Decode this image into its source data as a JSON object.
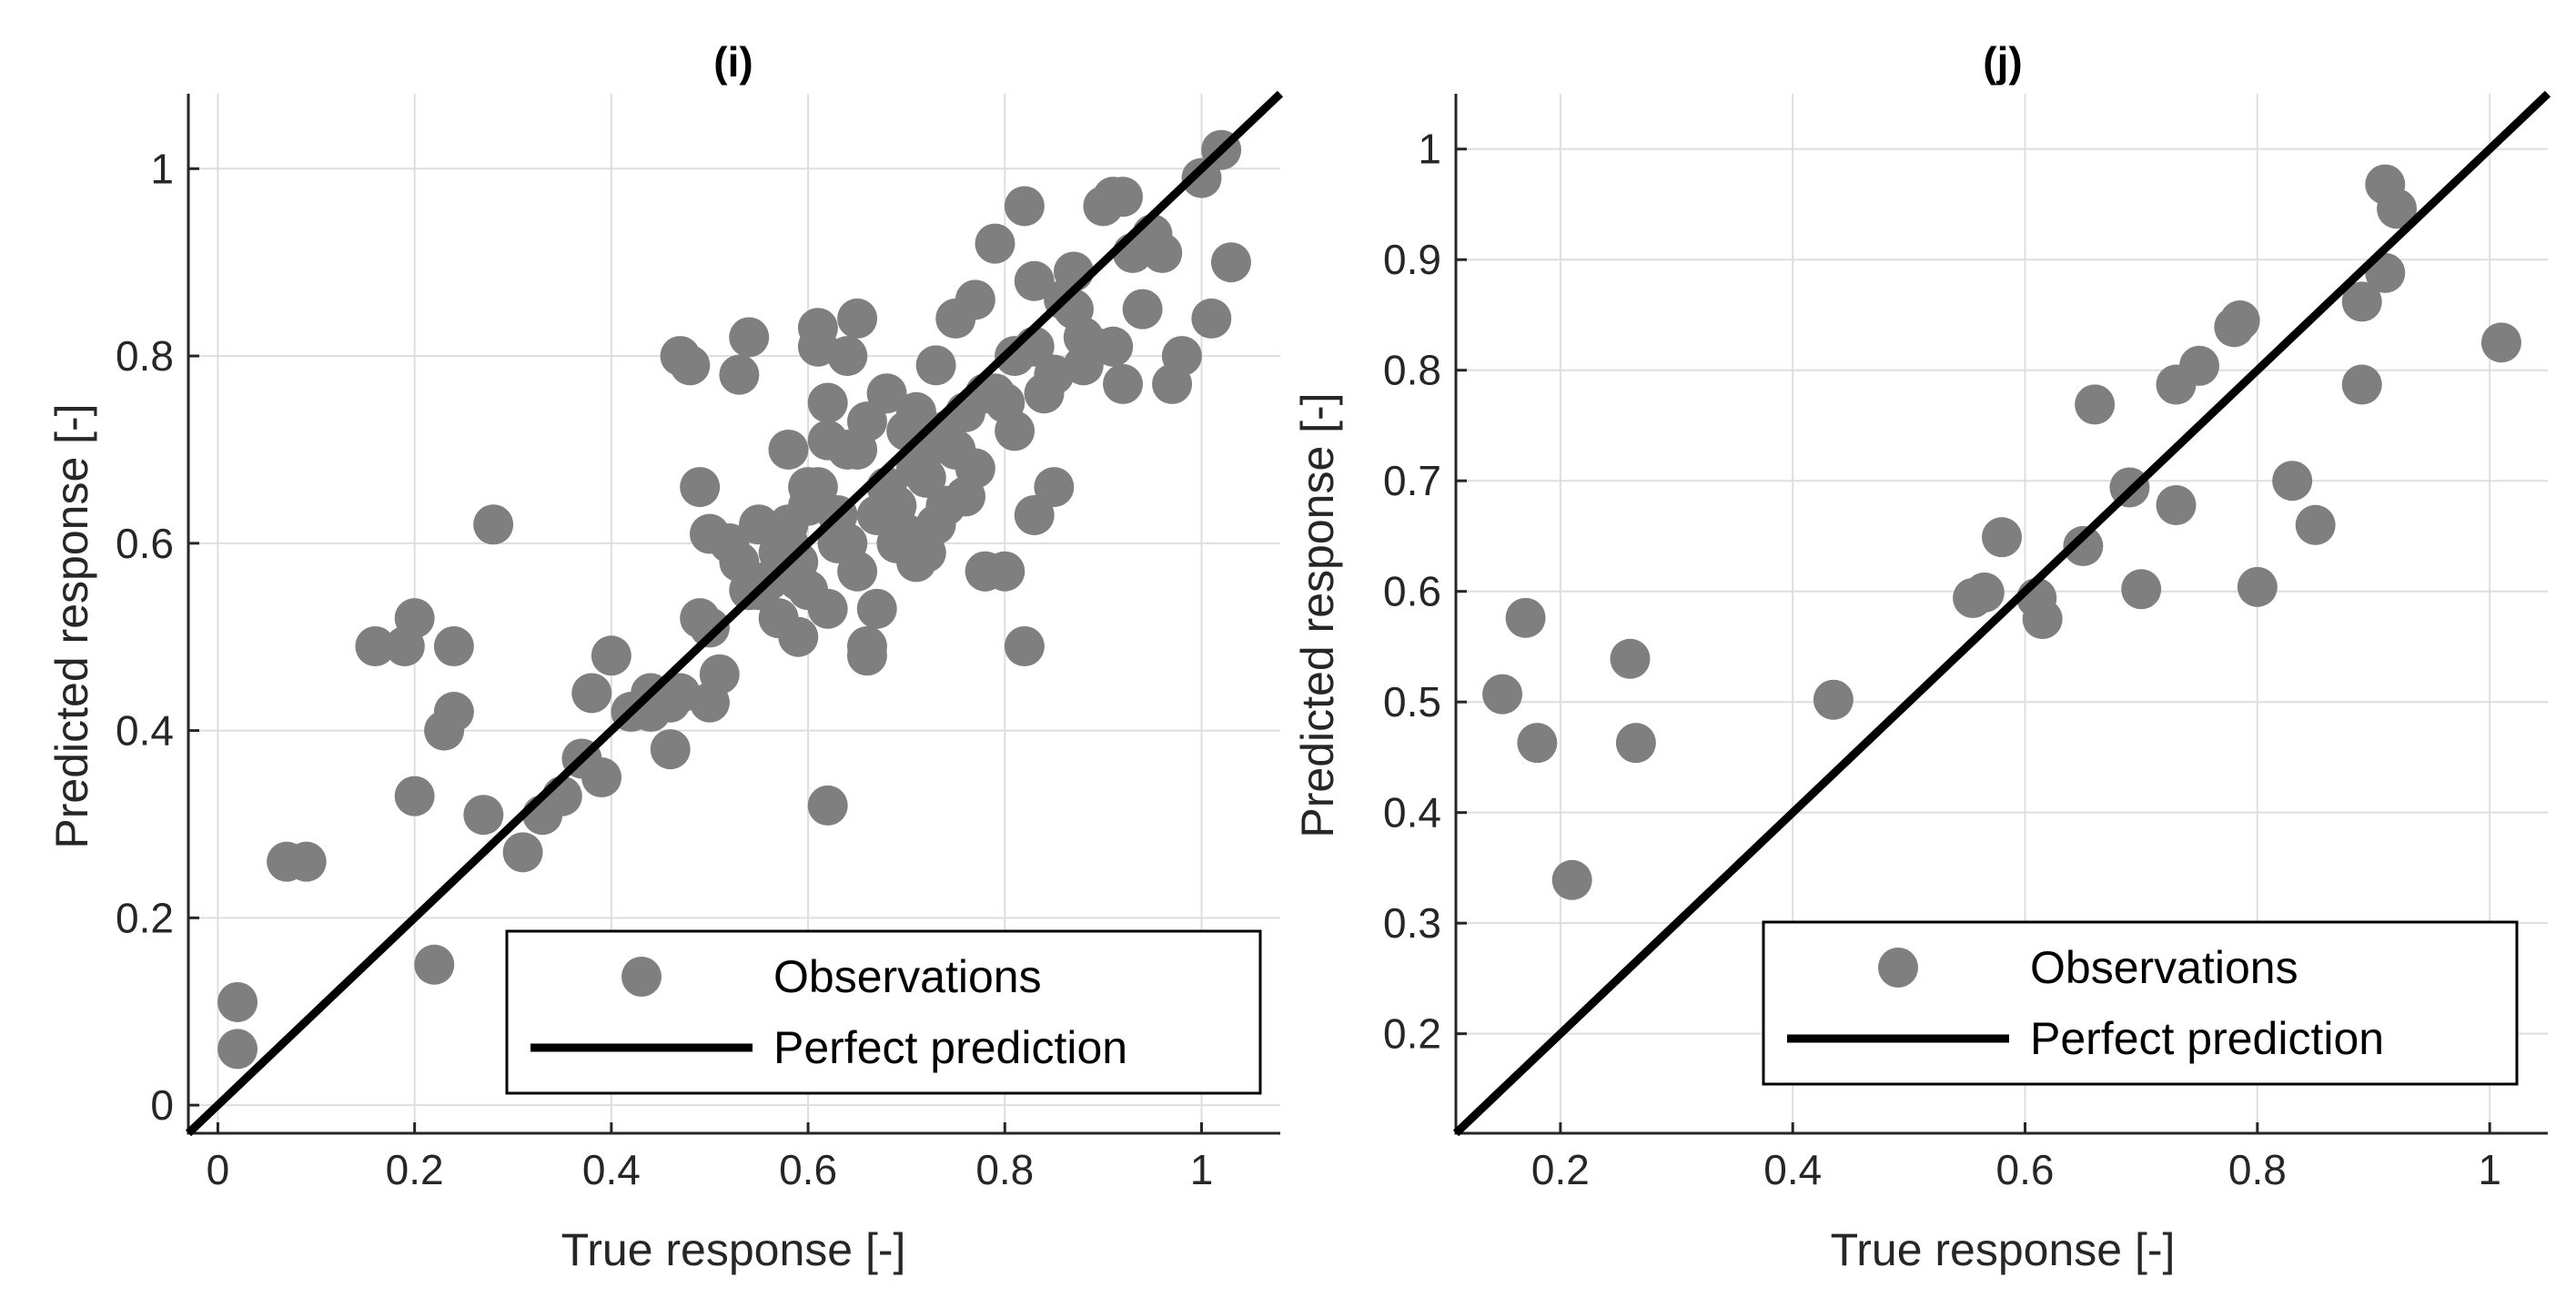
{
  "colors": {
    "observation": "#7f7f7f",
    "perfect_line": "#000000",
    "grid": "#dedede",
    "axis": "#262626"
  },
  "chart_data": [
    {
      "type": "scatter",
      "title": "(i)",
      "xlabel": "True response  [-]",
      "ylabel": "Predicted response  [-]",
      "xlim": [
        -0.03,
        1.08
      ],
      "ylim": [
        -0.03,
        1.08
      ],
      "xticks": [
        0,
        0.2,
        0.4,
        0.6,
        0.8,
        1
      ],
      "xtick_labels": [
        "0",
        "0.2",
        "0.4",
        "0.6",
        "0.8",
        "1"
      ],
      "yticks": [
        0,
        0.2,
        0.4,
        0.6,
        0.8,
        1
      ],
      "ytick_labels": [
        "0",
        "0.2",
        "0.4",
        "0.6",
        "0.8",
        "1"
      ],
      "grid": true,
      "legend": {
        "position": "bottom-right",
        "entries": [
          "Observations",
          "Perfect prediction"
        ]
      },
      "series": [
        {
          "name": "Observations",
          "x": [
            0.02,
            0.02,
            0.07,
            0.09,
            0.16,
            0.19,
            0.2,
            0.2,
            0.22,
            0.23,
            0.24,
            0.24,
            0.27,
            0.28,
            0.31,
            0.33,
            0.35,
            0.37,
            0.38,
            0.39,
            0.4,
            0.42,
            0.44,
            0.46,
            0.47,
            0.48,
            0.49,
            0.49,
            0.5,
            0.5,
            0.51,
            0.52,
            0.53,
            0.54,
            0.55,
            0.56,
            0.57,
            0.58,
            0.58,
            0.59,
            0.6,
            0.61,
            0.61,
            0.62,
            0.62,
            0.63,
            0.64,
            0.65,
            0.65,
            0.66,
            0.67,
            0.68,
            0.69,
            0.7,
            0.71,
            0.72,
            0.73,
            0.74,
            0.75,
            0.76,
            0.77,
            0.78,
            0.79,
            0.8,
            0.8,
            0.81,
            0.82,
            0.83,
            0.84,
            0.85,
            0.86,
            0.87,
            0.88,
            0.89,
            0.9,
            0.91,
            0.92,
            0.93,
            0.94,
            0.95,
            0.96,
            0.97,
            0.98,
            1.0,
            1.01,
            1.02,
            1.03,
            0.62,
            0.66,
            0.7,
            0.74,
            0.78,
            0.82,
            0.6,
            0.64,
            0.68,
            0.72,
            0.76,
            0.63,
            0.67,
            0.71,
            0.73,
            0.77,
            0.81,
            0.85,
            0.88,
            0.57,
            0.59,
            0.62,
            0.65,
            0.69,
            0.75,
            0.79,
            0.83,
            0.87,
            0.91,
            0.55,
            0.58,
            0.64,
            0.66,
            0.72,
            0.6,
            0.53,
            0.54,
            0.5,
            0.47,
            0.46,
            0.44,
            0.61,
            0.78,
            0.92,
            0.83,
            0.71,
            0.59
          ],
          "y": [
            0.11,
            0.06,
            0.26,
            0.26,
            0.49,
            0.49,
            0.52,
            0.33,
            0.15,
            0.4,
            0.42,
            0.49,
            0.31,
            0.62,
            0.27,
            0.31,
            0.33,
            0.37,
            0.44,
            0.35,
            0.48,
            0.42,
            0.44,
            0.38,
            0.8,
            0.79,
            0.66,
            0.52,
            0.61,
            0.43,
            0.46,
            0.6,
            0.78,
            0.82,
            0.55,
            0.56,
            0.59,
            0.62,
            0.7,
            0.5,
            0.64,
            0.83,
            0.66,
            0.75,
            0.71,
            0.63,
            0.8,
            0.84,
            0.7,
            0.48,
            0.53,
            0.76,
            0.6,
            0.72,
            0.74,
            0.59,
            0.79,
            0.72,
            0.84,
            0.65,
            0.86,
            0.76,
            0.92,
            0.57,
            0.75,
            0.8,
            0.96,
            0.88,
            0.76,
            0.66,
            0.86,
            0.89,
            0.79,
            0.81,
            0.96,
            0.81,
            0.77,
            0.91,
            0.85,
            0.93,
            0.91,
            0.77,
            0.8,
            0.99,
            0.84,
            1.02,
            0.9,
            0.32,
            0.49,
            0.61,
            0.64,
            0.57,
            0.49,
            0.55,
            0.6,
            0.66,
            0.7,
            0.74,
            0.6,
            0.63,
            0.68,
            0.62,
            0.68,
            0.72,
            0.78,
            0.82,
            0.52,
            0.58,
            0.53,
            0.57,
            0.64,
            0.7,
            0.76,
            0.81,
            0.85,
            0.97,
            0.62,
            0.6,
            0.7,
            0.73,
            0.67,
            0.66,
            0.58,
            0.55,
            0.51,
            0.44,
            0.43,
            0.42,
            0.81,
            0.57,
            0.97,
            0.63,
            0.58,
            0.56
          ]
        },
        {
          "name": "Perfect prediction",
          "x": [
            -0.03,
            1.08
          ],
          "y": [
            -0.03,
            1.08
          ]
        }
      ]
    },
    {
      "type": "scatter",
      "title": "(j)",
      "xlabel": "True response [-]",
      "ylabel": "Predicted response  [-]",
      "xlim": [
        0.11,
        1.05
      ],
      "ylim": [
        0.11,
        1.05
      ],
      "xticks": [
        0.2,
        0.4,
        0.6,
        0.8,
        1
      ],
      "xtick_labels": [
        "0.2",
        "0.4",
        "0.6",
        "0.8",
        "1"
      ],
      "yticks": [
        0.2,
        0.3,
        0.4,
        0.5,
        0.6,
        0.7,
        0.8,
        0.9,
        1
      ],
      "ytick_labels": [
        "0.2",
        "0.3",
        "0.4",
        "0.5",
        "0.6",
        "0.7",
        "0.8",
        "0.9",
        "1"
      ],
      "grid": true,
      "legend": {
        "position": "bottom-right",
        "entries": [
          "Observations",
          "Perfect prediction"
        ]
      },
      "series": [
        {
          "name": "Observations",
          "x": [
            0.15,
            0.17,
            0.18,
            0.21,
            0.26,
            0.265,
            0.435,
            0.555,
            0.565,
            0.58,
            0.61,
            0.615,
            0.65,
            0.66,
            0.69,
            0.7,
            0.73,
            0.73,
            0.75,
            0.78,
            0.785,
            0.8,
            0.83,
            0.85,
            0.89,
            0.89,
            0.91,
            0.91,
            0.92,
            1.01
          ],
          "y": [
            0.507,
            0.576,
            0.463,
            0.339,
            0.539,
            0.463,
            0.502,
            0.594,
            0.599,
            0.649,
            0.594,
            0.575,
            0.641,
            0.769,
            0.694,
            0.602,
            0.678,
            0.787,
            0.804,
            0.839,
            0.845,
            0.604,
            0.7,
            0.66,
            0.862,
            0.787,
            0.968,
            0.888,
            0.946,
            0.825
          ]
        },
        {
          "name": "Perfect prediction",
          "x": [
            0.11,
            1.05
          ],
          "y": [
            0.11,
            1.05
          ]
        }
      ]
    }
  ]
}
